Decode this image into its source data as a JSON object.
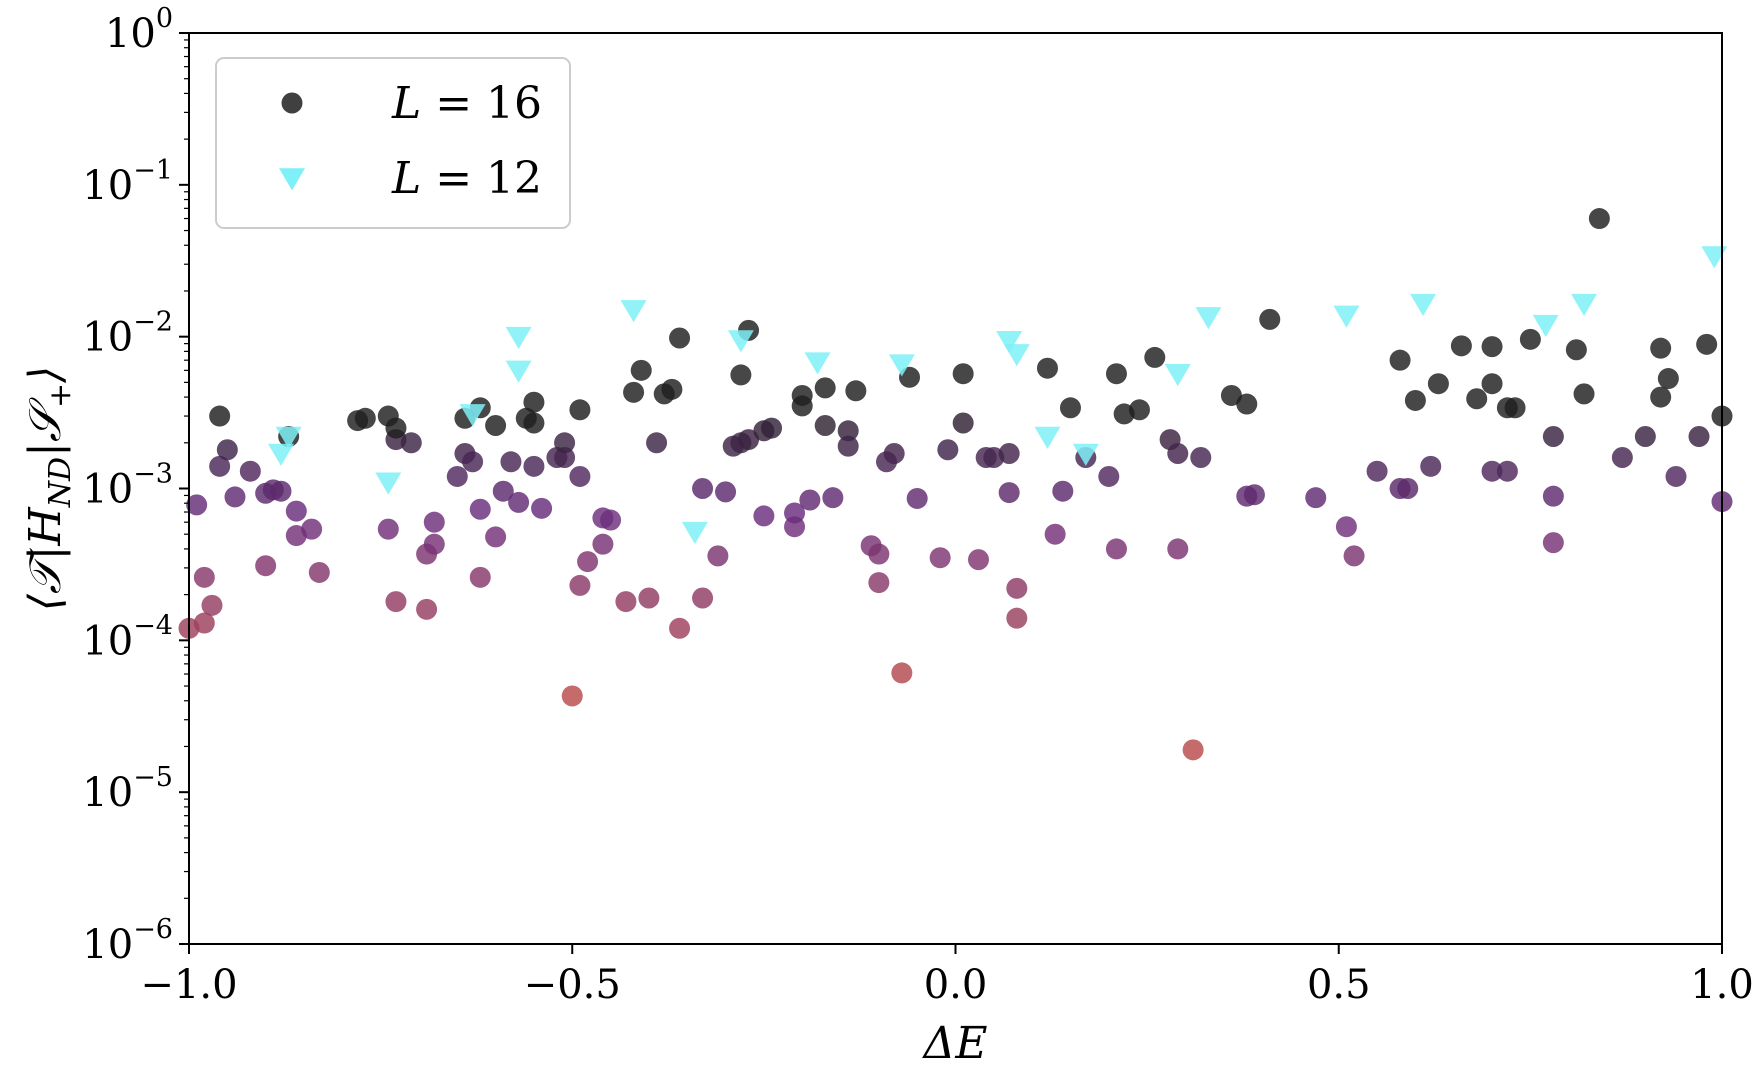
{
  "chart_data": {
    "type": "scatter",
    "xlabel": "ΔE",
    "ylabel": "⟨𝒯|H_ND|𝒮+⟩",
    "ylabel_parts": {
      "main": "⟨𝒯|H",
      "sub": "ND",
      "mid": "|𝒮",
      "sub2": "+",
      "end": "⟩"
    },
    "xlim": [
      -1.0,
      1.0
    ],
    "ylim": [
      1e-06,
      1.0
    ],
    "yscale": "log",
    "grid": false,
    "legend_placement": "top-left",
    "x_ticks": [
      {
        "value": -1.0,
        "label": "−1.0"
      },
      {
        "value": -0.5,
        "label": "−0.5"
      },
      {
        "value": 0.0,
        "label": "0.0"
      },
      {
        "value": 0.5,
        "label": "0.5"
      },
      {
        "value": 1.0,
        "label": "1.0"
      }
    ],
    "y_ticks": [
      {
        "value": 1e-06,
        "base": "10",
        "exp": "−6"
      },
      {
        "value": 1e-05,
        "base": "10",
        "exp": "−5"
      },
      {
        "value": 0.0001,
        "base": "10",
        "exp": "−4"
      },
      {
        "value": 0.001,
        "base": "10",
        "exp": "−3"
      },
      {
        "value": 0.01,
        "base": "10",
        "exp": "−2"
      },
      {
        "value": 0.1,
        "base": "10",
        "exp": "−1"
      },
      {
        "value": 1.0,
        "base": "10",
        "exp": "0"
      }
    ],
    "colormap_low": "#b84a4a",
    "colormap_mid": "#6a2d7e",
    "colormap_high": "#1e1e1e",
    "series": [
      {
        "name": "L = 16",
        "legend_label": {
          "var": "L",
          "rest": " = 16"
        },
        "marker": "circle",
        "color": "#1e1e1e",
        "points": [
          [
            -0.87,
            0.0022
          ],
          [
            -0.96,
            0.003
          ],
          [
            -0.78,
            0.0028
          ],
          [
            -0.77,
            0.0029
          ],
          [
            -0.74,
            0.003
          ],
          [
            -0.73,
            0.0025
          ],
          [
            -0.64,
            0.0029
          ],
          [
            -0.62,
            0.0034
          ],
          [
            -0.6,
            0.0026
          ],
          [
            -0.56,
            0.0029
          ],
          [
            -0.55,
            0.0027
          ],
          [
            -0.55,
            0.0037
          ],
          [
            -0.49,
            0.0033
          ],
          [
            -0.42,
            0.0043
          ],
          [
            -0.41,
            0.006
          ],
          [
            -0.38,
            0.0042
          ],
          [
            -0.37,
            0.0045
          ],
          [
            -0.36,
            0.0098
          ],
          [
            -0.27,
            0.011
          ],
          [
            -0.28,
            0.0056
          ],
          [
            -0.2,
            0.0035
          ],
          [
            -0.2,
            0.0041
          ],
          [
            -0.17,
            0.0046
          ],
          [
            -0.13,
            0.0044
          ],
          [
            -0.06,
            0.0054
          ],
          [
            0.01,
            0.0057
          ],
          [
            0.12,
            0.0062
          ],
          [
            0.15,
            0.0034
          ],
          [
            0.21,
            0.0057
          ],
          [
            0.22,
            0.0031
          ],
          [
            0.24,
            0.0033
          ],
          [
            0.26,
            0.0073
          ],
          [
            0.36,
            0.0041
          ],
          [
            0.38,
            0.0036
          ],
          [
            0.41,
            0.013
          ],
          [
            0.58,
            0.007
          ],
          [
            0.6,
            0.0038
          ],
          [
            0.63,
            0.0049
          ],
          [
            0.66,
            0.0087
          ],
          [
            0.68,
            0.0039
          ],
          [
            0.7,
            0.0086
          ],
          [
            0.7,
            0.0049
          ],
          [
            0.72,
            0.0034
          ],
          [
            0.73,
            0.0034
          ],
          [
            0.75,
            0.0096
          ],
          [
            0.81,
            0.0082
          ],
          [
            0.82,
            0.0042
          ],
          [
            0.84,
            0.06
          ],
          [
            0.92,
            0.0084
          ],
          [
            0.92,
            0.004
          ],
          [
            0.93,
            0.0053
          ],
          [
            0.98,
            0.0089
          ],
          [
            1.0,
            0.003
          ]
        ]
      },
      {
        "name": "L = 12",
        "legend_label": {
          "var": "L",
          "rest": " = 12"
        },
        "marker": "triangle-down",
        "color": "#7ef0f7",
        "points": [
          [
            -0.88,
            0.0017
          ],
          [
            -0.87,
            0.0022
          ],
          [
            -0.74,
            0.0011
          ],
          [
            -0.63,
            0.0031
          ],
          [
            -0.57,
            0.01
          ],
          [
            -0.57,
            0.006
          ],
          [
            -0.42,
            0.015
          ],
          [
            -0.34,
            0.00052
          ],
          [
            -0.28,
            0.0095
          ],
          [
            -0.18,
            0.0068
          ],
          [
            -0.07,
            0.0066
          ],
          [
            0.07,
            0.0094
          ],
          [
            0.08,
            0.0077
          ],
          [
            0.12,
            0.0022
          ],
          [
            0.17,
            0.0017
          ],
          [
            0.29,
            0.0057
          ],
          [
            0.33,
            0.0135
          ],
          [
            0.51,
            0.0138
          ],
          [
            0.61,
            0.0165
          ],
          [
            0.77,
            0.012
          ],
          [
            0.82,
            0.0165
          ],
          [
            0.99,
            0.034
          ]
        ]
      },
      {
        "name": "",
        "marker": "circle",
        "color_by": "colormap",
        "points": [
          [
            -1.0,
            0.00012
          ],
          [
            -0.99,
            0.00078
          ],
          [
            -0.98,
            0.00026
          ],
          [
            -0.98,
            0.00013
          ],
          [
            -0.97,
            0.00017
          ],
          [
            -0.96,
            0.0014
          ],
          [
            -0.95,
            0.0018
          ],
          [
            -0.94,
            0.00088
          ],
          [
            -0.92,
            0.0013
          ],
          [
            -0.9,
            0.00093
          ],
          [
            -0.9,
            0.00031
          ],
          [
            -0.89,
            0.00098
          ],
          [
            -0.88,
            0.00096
          ],
          [
            -0.86,
            0.00071
          ],
          [
            -0.86,
            0.00049
          ],
          [
            -0.84,
            0.00054
          ],
          [
            -0.83,
            0.00028
          ],
          [
            -0.74,
            0.00054
          ],
          [
            -0.73,
            0.00018
          ],
          [
            -0.73,
            0.0021
          ],
          [
            -0.71,
            0.002
          ],
          [
            -0.69,
            0.00016
          ],
          [
            -0.69,
            0.00037
          ],
          [
            -0.68,
            0.00043
          ],
          [
            -0.68,
            0.0006
          ],
          [
            -0.65,
            0.0012
          ],
          [
            -0.64,
            0.0017
          ],
          [
            -0.63,
            0.0015
          ],
          [
            -0.62,
            0.00073
          ],
          [
            -0.62,
            0.00026
          ],
          [
            -0.6,
            0.00048
          ],
          [
            -0.59,
            0.00096
          ],
          [
            -0.58,
            0.0015
          ],
          [
            -0.57,
            0.00081
          ],
          [
            -0.55,
            0.0014
          ],
          [
            -0.54,
            0.00074
          ],
          [
            -0.52,
            0.0016
          ],
          [
            -0.51,
            0.0016
          ],
          [
            -0.51,
            0.002
          ],
          [
            -0.5,
            4.3e-05
          ],
          [
            -0.49,
            0.0012
          ],
          [
            -0.49,
            0.00023
          ],
          [
            -0.48,
            0.00033
          ],
          [
            -0.46,
            0.00043
          ],
          [
            -0.46,
            0.00064
          ],
          [
            -0.45,
            0.00062
          ],
          [
            -0.43,
            0.00018
          ],
          [
            -0.4,
            0.00019
          ],
          [
            -0.39,
            0.002
          ],
          [
            -0.36,
            0.00012
          ],
          [
            -0.33,
            0.00019
          ],
          [
            -0.33,
            0.001
          ],
          [
            -0.31,
            0.00036
          ],
          [
            -0.3,
            0.00095
          ],
          [
            -0.29,
            0.0019
          ],
          [
            -0.28,
            0.002
          ],
          [
            -0.27,
            0.0021
          ],
          [
            -0.25,
            0.0024
          ],
          [
            -0.25,
            0.00066
          ],
          [
            -0.24,
            0.0025
          ],
          [
            -0.21,
            0.00056
          ],
          [
            -0.21,
            0.00069
          ],
          [
            -0.19,
            0.00084
          ],
          [
            -0.17,
            0.0026
          ],
          [
            -0.16,
            0.00087
          ],
          [
            -0.14,
            0.0024
          ],
          [
            -0.14,
            0.0019
          ],
          [
            -0.11,
            0.00042
          ],
          [
            -0.1,
            0.00037
          ],
          [
            -0.1,
            0.00024
          ],
          [
            -0.09,
            0.0015
          ],
          [
            -0.08,
            0.0017
          ],
          [
            -0.07,
            6.1e-05
          ],
          [
            -0.05,
            0.00086
          ],
          [
            -0.02,
            0.00035
          ],
          [
            -0.01,
            0.0018
          ],
          [
            0.01,
            0.0027
          ],
          [
            0.03,
            0.00034
          ],
          [
            0.04,
            0.0016
          ],
          [
            0.05,
            0.0016
          ],
          [
            0.07,
            0.0017
          ],
          [
            0.07,
            0.00094
          ],
          [
            0.08,
            0.00014
          ],
          [
            0.08,
            0.00022
          ],
          [
            0.13,
            0.0005
          ],
          [
            0.14,
            0.00096
          ],
          [
            0.17,
            0.0016
          ],
          [
            0.2,
            0.0012
          ],
          [
            0.21,
            0.0004
          ],
          [
            0.28,
            0.0021
          ],
          [
            0.29,
            0.0004
          ],
          [
            0.29,
            0.0017
          ],
          [
            0.31,
            1.9e-05
          ],
          [
            0.32,
            0.0016
          ],
          [
            0.38,
            0.00089
          ],
          [
            0.39,
            0.00091
          ],
          [
            0.47,
            0.00087
          ],
          [
            0.51,
            0.00056
          ],
          [
            0.52,
            0.00036
          ],
          [
            0.55,
            0.0013
          ],
          [
            0.58,
            0.001
          ],
          [
            0.59,
            0.001
          ],
          [
            0.62,
            0.0014
          ],
          [
            0.7,
            0.0013
          ],
          [
            0.72,
            0.0013
          ],
          [
            0.78,
            0.0022
          ],
          [
            0.78,
            0.00044
          ],
          [
            0.78,
            0.00089
          ],
          [
            0.87,
            0.0016
          ],
          [
            0.9,
            0.0022
          ],
          [
            0.94,
            0.0012
          ],
          [
            0.97,
            0.0022
          ],
          [
            1.0,
            0.00082
          ]
        ]
      }
    ]
  }
}
